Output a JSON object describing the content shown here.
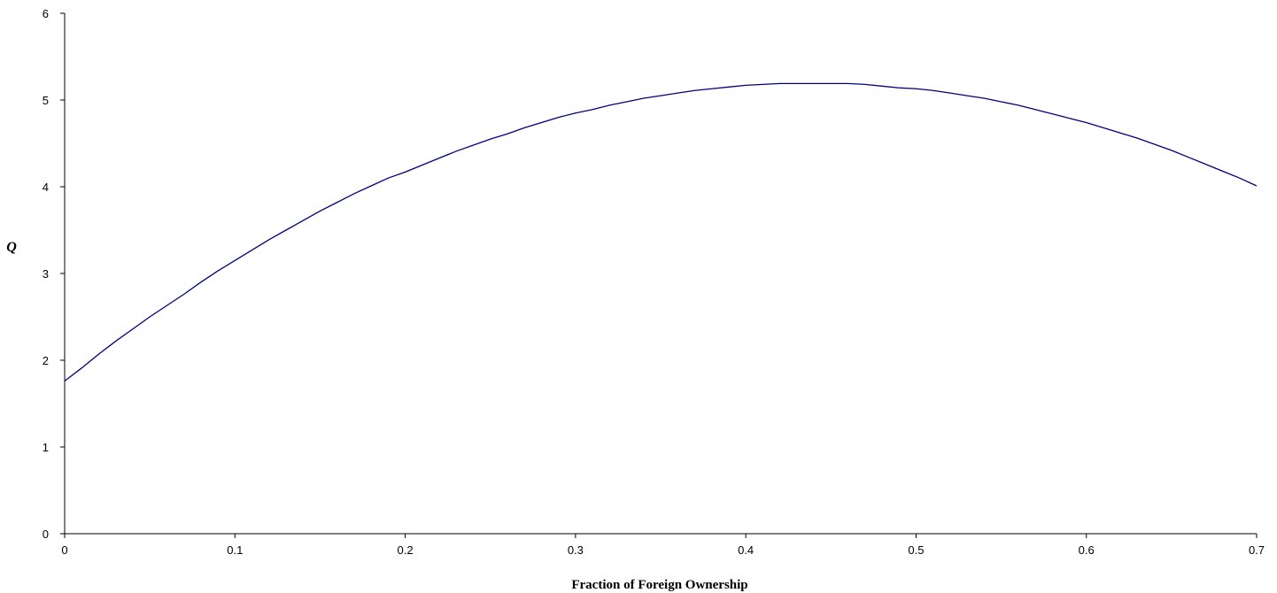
{
  "chart_data": {
    "type": "line",
    "title": "",
    "xlabel": "Fraction of Foreign Ownership",
    "ylabel": "Q",
    "xlim": [
      0,
      0.7
    ],
    "ylim": [
      0,
      6
    ],
    "x_ticks": [
      "0",
      "0.1",
      "0.2",
      "0.3",
      "0.4",
      "0.5",
      "0.6",
      "0.7"
    ],
    "y_ticks": [
      "0",
      "1",
      "2",
      "3",
      "4",
      "5",
      "6"
    ],
    "grid": false,
    "legend": "none",
    "line_color": "#000080",
    "series": [
      {
        "x": [
          0,
          0.01,
          0.02,
          0.03,
          0.04,
          0.05,
          0.06,
          0.07,
          0.08,
          0.09,
          0.1,
          0.11,
          0.12,
          0.13,
          0.14,
          0.15,
          0.16,
          0.17,
          0.18,
          0.19,
          0.2,
          0.21,
          0.22,
          0.23,
          0.24,
          0.25,
          0.26,
          0.27,
          0.28,
          0.29,
          0.3,
          0.31,
          0.32,
          0.33,
          0.34,
          0.35,
          0.36,
          0.37,
          0.38,
          0.39,
          0.4,
          0.41,
          0.42,
          0.43,
          0.44,
          0.45,
          0.46,
          0.47,
          0.48,
          0.49,
          0.5,
          0.51,
          0.52,
          0.53,
          0.54,
          0.55,
          0.56,
          0.57,
          0.58,
          0.59,
          0.6,
          0.61,
          0.62,
          0.63,
          0.64,
          0.65,
          0.66,
          0.67,
          0.68,
          0.69,
          0.7
        ],
        "y": [
          1.76,
          1.91,
          2.07,
          2.22,
          2.36,
          2.5,
          2.63,
          2.76,
          2.9,
          3.03,
          3.15,
          3.27,
          3.39,
          3.5,
          3.61,
          3.72,
          3.82,
          3.92,
          4.01,
          4.1,
          4.17,
          4.25,
          4.33,
          4.41,
          4.48,
          4.55,
          4.61,
          4.68,
          4.74,
          4.8,
          4.85,
          4.89,
          4.94,
          4.98,
          5.02,
          5.05,
          5.08,
          5.11,
          5.13,
          5.15,
          5.17,
          5.18,
          5.19,
          5.19,
          5.19,
          5.19,
          5.19,
          5.18,
          5.16,
          5.14,
          5.13,
          5.11,
          5.08,
          5.05,
          5.02,
          4.98,
          4.94,
          4.89,
          4.84,
          4.79,
          4.74,
          4.68,
          4.62,
          4.56,
          4.49,
          4.42,
          4.34,
          4.26,
          4.18,
          4.1,
          4.01
        ]
      }
    ]
  }
}
